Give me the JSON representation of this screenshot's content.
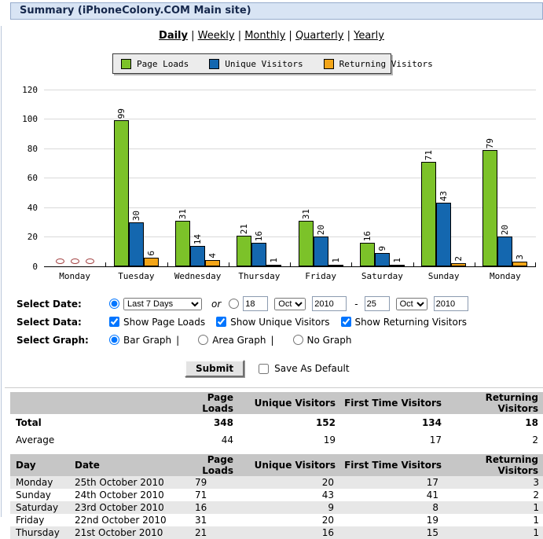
{
  "header": {
    "title": "Summary (iPhoneColony.COM Main site)"
  },
  "nav": {
    "separator": "|",
    "items": [
      {
        "label": "Daily",
        "active": true
      },
      {
        "label": "Weekly",
        "active": false
      },
      {
        "label": "Monthly",
        "active": false
      },
      {
        "label": "Quarterly",
        "active": false
      },
      {
        "label": "Yearly",
        "active": false
      }
    ]
  },
  "legend": {
    "items": [
      {
        "label": "Page Loads",
        "color": "#7cc229"
      },
      {
        "label": "Unique Visitors",
        "color": "#1467af"
      },
      {
        "label": "Returning Visitors",
        "color": "#f3a518"
      }
    ]
  },
  "chart_data": {
    "type": "bar",
    "categories": [
      "Monday",
      "Tuesday",
      "Wednesday",
      "Thursday",
      "Friday",
      "Saturday",
      "Sunday",
      "Monday"
    ],
    "series": [
      {
        "name": "Page Loads",
        "color": "#7cc229",
        "values": [
          0,
          99,
          31,
          21,
          31,
          16,
          71,
          79
        ]
      },
      {
        "name": "Unique Visitors",
        "color": "#1467af",
        "values": [
          0,
          30,
          14,
          16,
          20,
          9,
          43,
          20
        ]
      },
      {
        "name": "Returning Visitors",
        "color": "#f3a518",
        "values": [
          0,
          6,
          4,
          1,
          1,
          1,
          2,
          3
        ]
      }
    ],
    "ylim": [
      0,
      120
    ],
    "yticks": [
      0,
      20,
      40,
      60,
      80,
      100,
      120
    ],
    "grid": true,
    "zero_marker_color": "#a03c3c",
    "legend_position": "top"
  },
  "form": {
    "date_label": "Select Date:",
    "data_label": "Select Data:",
    "graph_label": "Select Graph:",
    "preset_option": "Last 7 Days",
    "or_label": "or",
    "from": {
      "day": "18",
      "month": "Oct",
      "year": "2010"
    },
    "to": {
      "day": "25",
      "month": "Oct",
      "year": "2010"
    },
    "range_separator": "-",
    "data_options": [
      {
        "label": "Show Page Loads",
        "checked": true
      },
      {
        "label": "Show Unique Visitors",
        "checked": true
      },
      {
        "label": "Show Returning Visitors",
        "checked": true
      }
    ],
    "graph_options": [
      {
        "label": "Bar Graph",
        "checked": true
      },
      {
        "label": "Area Graph",
        "checked": false
      },
      {
        "label": "No Graph",
        "checked": false
      }
    ],
    "graph_separator": "|",
    "submit_label": "Submit",
    "save_default_label": "Save As Default"
  },
  "summary_table": {
    "headers": [
      "",
      "Page Loads",
      "Unique Visitors",
      "First Time Visitors",
      "Returning Visitors"
    ],
    "rows": [
      {
        "label": "Total",
        "bold": true,
        "values": [
          "348",
          "152",
          "134",
          "18"
        ]
      },
      {
        "label": "Average",
        "bold": false,
        "values": [
          "44",
          "19",
          "17",
          "2"
        ]
      }
    ]
  },
  "detail_table": {
    "headers": [
      "Day",
      "Date",
      "Page Loads",
      "Unique Visitors",
      "First Time Visitors",
      "Returning Visitors"
    ],
    "rows": [
      [
        "Monday",
        "25th October 2010",
        "79",
        "20",
        "17",
        "3"
      ],
      [
        "Sunday",
        "24th October 2010",
        "71",
        "43",
        "41",
        "2"
      ],
      [
        "Saturday",
        "23rd October 2010",
        "16",
        "9",
        "8",
        "1"
      ],
      [
        "Friday",
        "22nd October 2010",
        "31",
        "20",
        "19",
        "1"
      ],
      [
        "Thursday",
        "21st October 2010",
        "21",
        "16",
        "15",
        "1"
      ]
    ]
  },
  "colors": {
    "titlebar_bg": "#d8e4f4",
    "titlebar_border": "#96abcd",
    "titlebar_text": "#16284c",
    "table_header_bg": "#c6c6c6",
    "alt_row_bg": "#e7e7e7",
    "gridline": "#d9d9d9"
  }
}
